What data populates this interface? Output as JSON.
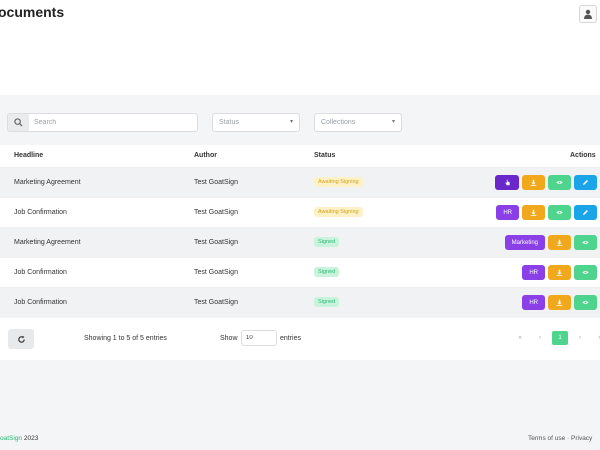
{
  "header": {
    "title": "ocuments"
  },
  "filters": {
    "search_placeholder": "Search",
    "status_label": "Status",
    "collections_label": "Collections"
  },
  "table": {
    "columns": [
      "Headline",
      "Author",
      "Status",
      "Actions"
    ],
    "rows": [
      {
        "headline": "Marketing Agreement",
        "author": "Test GoatSign",
        "status": "Awaiting Signing",
        "status_type": "awaiting",
        "tag": ""
      },
      {
        "headline": "Job Confirmation",
        "author": "Test GoatSign",
        "status": "Awaiting Signing",
        "status_type": "awaiting",
        "tag": "HR"
      },
      {
        "headline": "Marketing Agreement",
        "author": "Test GoatSign",
        "status": "Signed",
        "status_type": "signed",
        "tag": "Marketing"
      },
      {
        "headline": "Job Confirmation",
        "author": "Test GoatSign",
        "status": "Signed",
        "status_type": "signed",
        "tag": "HR"
      },
      {
        "headline": "Job Confirmation",
        "author": "Test GoatSign",
        "status": "Signed",
        "status_type": "signed",
        "tag": "HR"
      }
    ]
  },
  "footer": {
    "showing": "Showing 1 to 5 of 5 entries",
    "show_label": "Show",
    "entries_value": "10",
    "entries_label": "entries",
    "pager": {
      "first": "«",
      "prev": "‹",
      "current": "1",
      "next": "›",
      "last": "»"
    }
  },
  "page_footer": {
    "brand_green": "oatSign",
    "year": " 2023",
    "terms": "Terms of use",
    "sep": " · ",
    "privacy": "Privacy"
  },
  "colors": {
    "purple": "#8a40e6",
    "orange": "#f2a81d",
    "green": "#4fd48e",
    "blue": "#1aa5e8"
  }
}
